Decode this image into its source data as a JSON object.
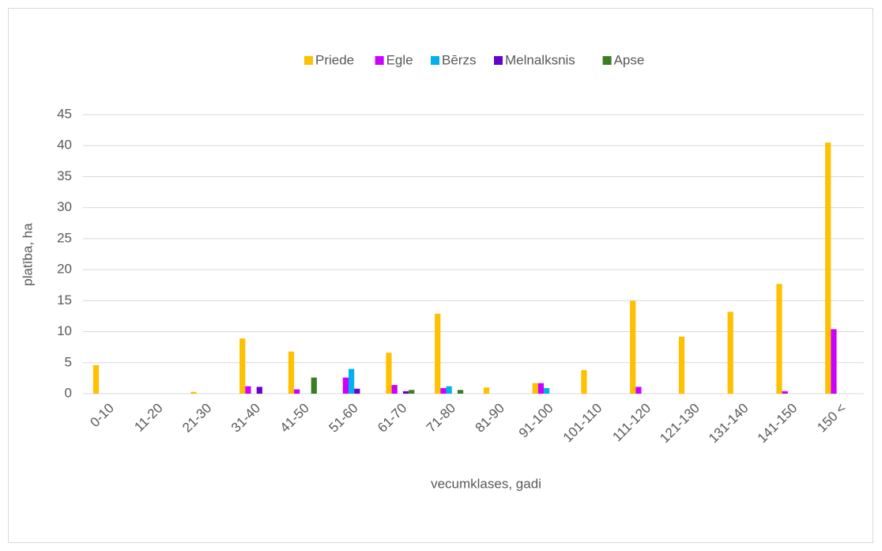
{
  "chart_data": {
    "type": "bar",
    "x_label": "vecumklases, gadi",
    "y_label": "platība, ha",
    "categories": [
      "0-10",
      "11-20",
      "21-30",
      "31-40",
      "41-50",
      "51-60",
      "61-70",
      "71-80",
      "81-90",
      "91-100",
      "101-110",
      "111-120",
      "121-130",
      "131-140",
      "141-150",
      "150 <"
    ],
    "series": [
      {
        "name": "Priede",
        "color": "#ffc000",
        "values": [
          4.6,
          0,
          0.3,
          8.9,
          6.8,
          0,
          6.6,
          12.9,
          1.0,
          1.7,
          3.8,
          15.0,
          9.2,
          13.2,
          17.7,
          40.5
        ]
      },
      {
        "name": "Egle",
        "color": "#cc00ff",
        "values": [
          0,
          0,
          0,
          1.2,
          0.7,
          2.6,
          1.4,
          0.9,
          0,
          1.7,
          0,
          1.1,
          0,
          0,
          0.4,
          10.4
        ]
      },
      {
        "name": "Bērzs",
        "color": "#00b0f0",
        "values": [
          0,
          0,
          0,
          0,
          0,
          4.0,
          0,
          1.2,
          0,
          0.9,
          0,
          0,
          0,
          0,
          0,
          0
        ]
      },
      {
        "name": "Melnalksnis",
        "color": "#6600cc",
        "values": [
          0,
          0,
          0,
          1.1,
          0,
          0.8,
          0.4,
          0,
          0,
          0,
          0,
          0,
          0,
          0,
          0,
          0
        ]
      },
      {
        "name": "Apse",
        "color": "#3a7d22",
        "values": [
          0,
          0,
          0,
          0,
          2.6,
          0,
          0.6,
          0.6,
          0,
          0,
          0,
          0,
          0,
          0,
          0,
          0
        ]
      }
    ],
    "ylim": [
      0,
      45
    ],
    "yticks": [
      0,
      5,
      10,
      15,
      20,
      25,
      30,
      35,
      40,
      45
    ],
    "grid": true,
    "legend": "top"
  }
}
